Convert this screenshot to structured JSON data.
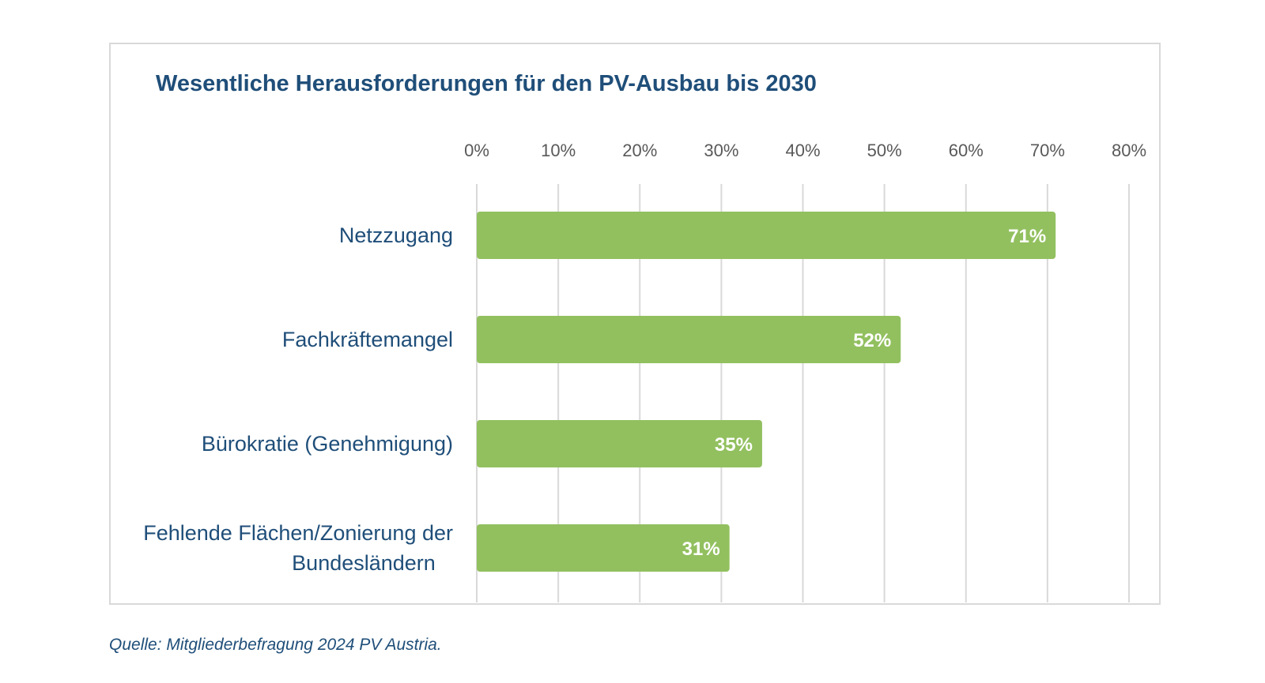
{
  "chart_data": {
    "type": "bar",
    "orientation": "horizontal",
    "title": "Wesentliche Herausforderungen für den PV-Ausbau bis 2030",
    "categories": [
      [
        "Netzzugang"
      ],
      [
        "Fachkräftemangel"
      ],
      [
        "Bürokratie (Genehmigung)"
      ],
      [
        "Fehlende Flächen/Zonierung der",
        "Bundesländern"
      ]
    ],
    "values": [
      71,
      52,
      35,
      31
    ],
    "data_labels": [
      "71%",
      "52%",
      "35%",
      "31%"
    ],
    "xlim": [
      0,
      80
    ],
    "x_ticks": [
      "0%",
      "10%",
      "20%",
      "30%",
      "40%",
      "50%",
      "60%",
      "70%",
      "80%"
    ],
    "x_axis_position": "top",
    "grid": true,
    "legend": "none",
    "colors": {
      "bar": "#92c05f",
      "title": "#1f4e79",
      "category_label": "#1f4e79",
      "tick_label": "#595959",
      "grid": "#d9d9d9",
      "data_label": "#ffffff"
    }
  },
  "source": "Quelle: Mitgliederbefragung 2024 PV Austria."
}
